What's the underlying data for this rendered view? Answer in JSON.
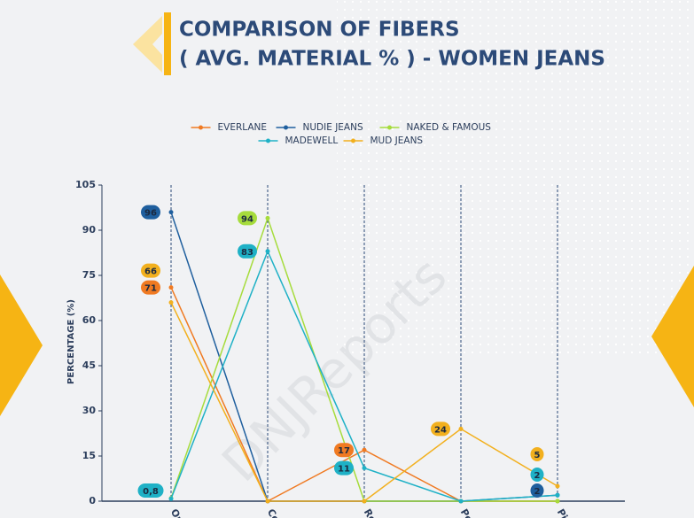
{
  "chart_data": {
    "type": "line",
    "title": "COMPARISON OF FIBERS",
    "subtitle": "( AVG. MATERIAL % ) - WOMEN JEANS",
    "y_label": "PERCENTAGE (%)",
    "watermark": "DNJReports",
    "categories": [
      "Or",
      "Co",
      "Re",
      "Po",
      "Pi"
    ],
    "series": [
      {
        "name": "EVERLANE",
        "color": "#f07a22",
        "values": [
          71,
          0,
          17,
          0,
          0
        ],
        "value_labels": [
          "71",
          null,
          "17",
          null,
          null
        ]
      },
      {
        "name": "NUDIE JEANS",
        "color": "#1f5f9e",
        "values": [
          96,
          0,
          0,
          0,
          2
        ],
        "value_labels": [
          "96",
          null,
          null,
          null,
          "2"
        ]
      },
      {
        "name": "NAKED & FAMOUS",
        "color": "#a6dc3c",
        "values": [
          1,
          94,
          0,
          0,
          0
        ],
        "value_labels": [
          null,
          "94",
          null,
          null,
          null
        ]
      },
      {
        "name": "MADEWELL",
        "color": "#1fb1c6",
        "values": [
          0.8,
          83,
          11,
          0,
          2
        ],
        "value_labels": [
          "0,8",
          "83",
          "11",
          null,
          "2"
        ]
      },
      {
        "name": "MUD JEANS",
        "color": "#f2b01e",
        "values": [
          66,
          0,
          0,
          24,
          5
        ],
        "value_labels": [
          "66",
          null,
          null,
          "24",
          "5"
        ]
      }
    ],
    "ylim": [
      0,
      105
    ],
    "yticks": [
      0,
      15,
      30,
      45,
      60,
      75,
      90,
      105
    ],
    "grid": false
  }
}
